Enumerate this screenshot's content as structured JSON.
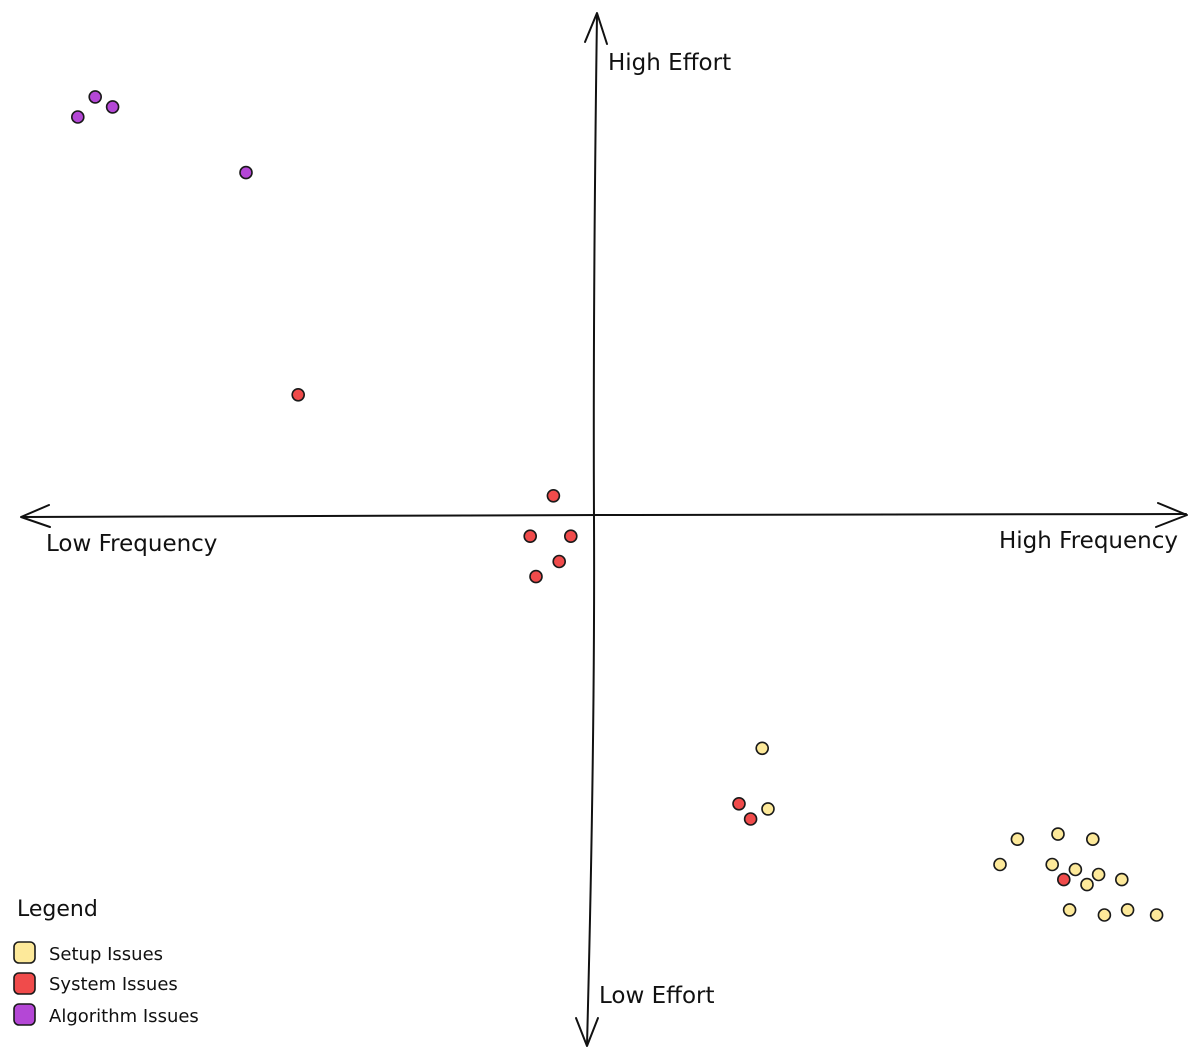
{
  "chart_data": {
    "type": "scatter",
    "title": "",
    "x_axis": {
      "negative_label": "Low Frequency",
      "positive_label": "High Frequency",
      "range": [
        -100,
        100
      ]
    },
    "y_axis": {
      "negative_label": "Low Effort",
      "positive_label": "High Effort",
      "range": [
        -100,
        100
      ]
    },
    "grid": false,
    "legend": {
      "title": "Legend",
      "placement": "bottom-left",
      "entries": [
        {
          "name": "Setup Issues",
          "color": "#fde99a"
        },
        {
          "name": "System Issues",
          "color": "#f04b4b"
        },
        {
          "name": "Algorithm Issues",
          "color": "#b447d6"
        }
      ]
    },
    "series": [
      {
        "name": "Setup Issues",
        "color": "#fde99a",
        "points": [
          [
            29,
            -46
          ],
          [
            30,
            -58
          ],
          [
            73,
            -64
          ],
          [
            80,
            -63
          ],
          [
            86,
            -64
          ],
          [
            70,
            -69
          ],
          [
            79,
            -69
          ],
          [
            83,
            -70
          ],
          [
            87,
            -71
          ],
          [
            91,
            -72
          ],
          [
            85,
            -73
          ],
          [
            82,
            -78
          ],
          [
            88,
            -79
          ],
          [
            92,
            -78
          ],
          [
            97,
            -79
          ]
        ]
      },
      {
        "name": "System Issues",
        "color": "#f04b4b",
        "points": [
          [
            -51,
            24
          ],
          [
            -7,
            4
          ],
          [
            -11,
            -4
          ],
          [
            -4,
            -4
          ],
          [
            -6,
            -9
          ],
          [
            -10,
            -12
          ],
          [
            25,
            -57
          ],
          [
            27,
            -60
          ],
          [
            81,
            -72
          ]
        ]
      },
      {
        "name": "Algorithm Issues",
        "color": "#b447d6",
        "points": [
          [
            -86,
            83
          ],
          [
            -83,
            81
          ],
          [
            -89,
            79
          ],
          [
            -60,
            68
          ]
        ]
      }
    ]
  }
}
